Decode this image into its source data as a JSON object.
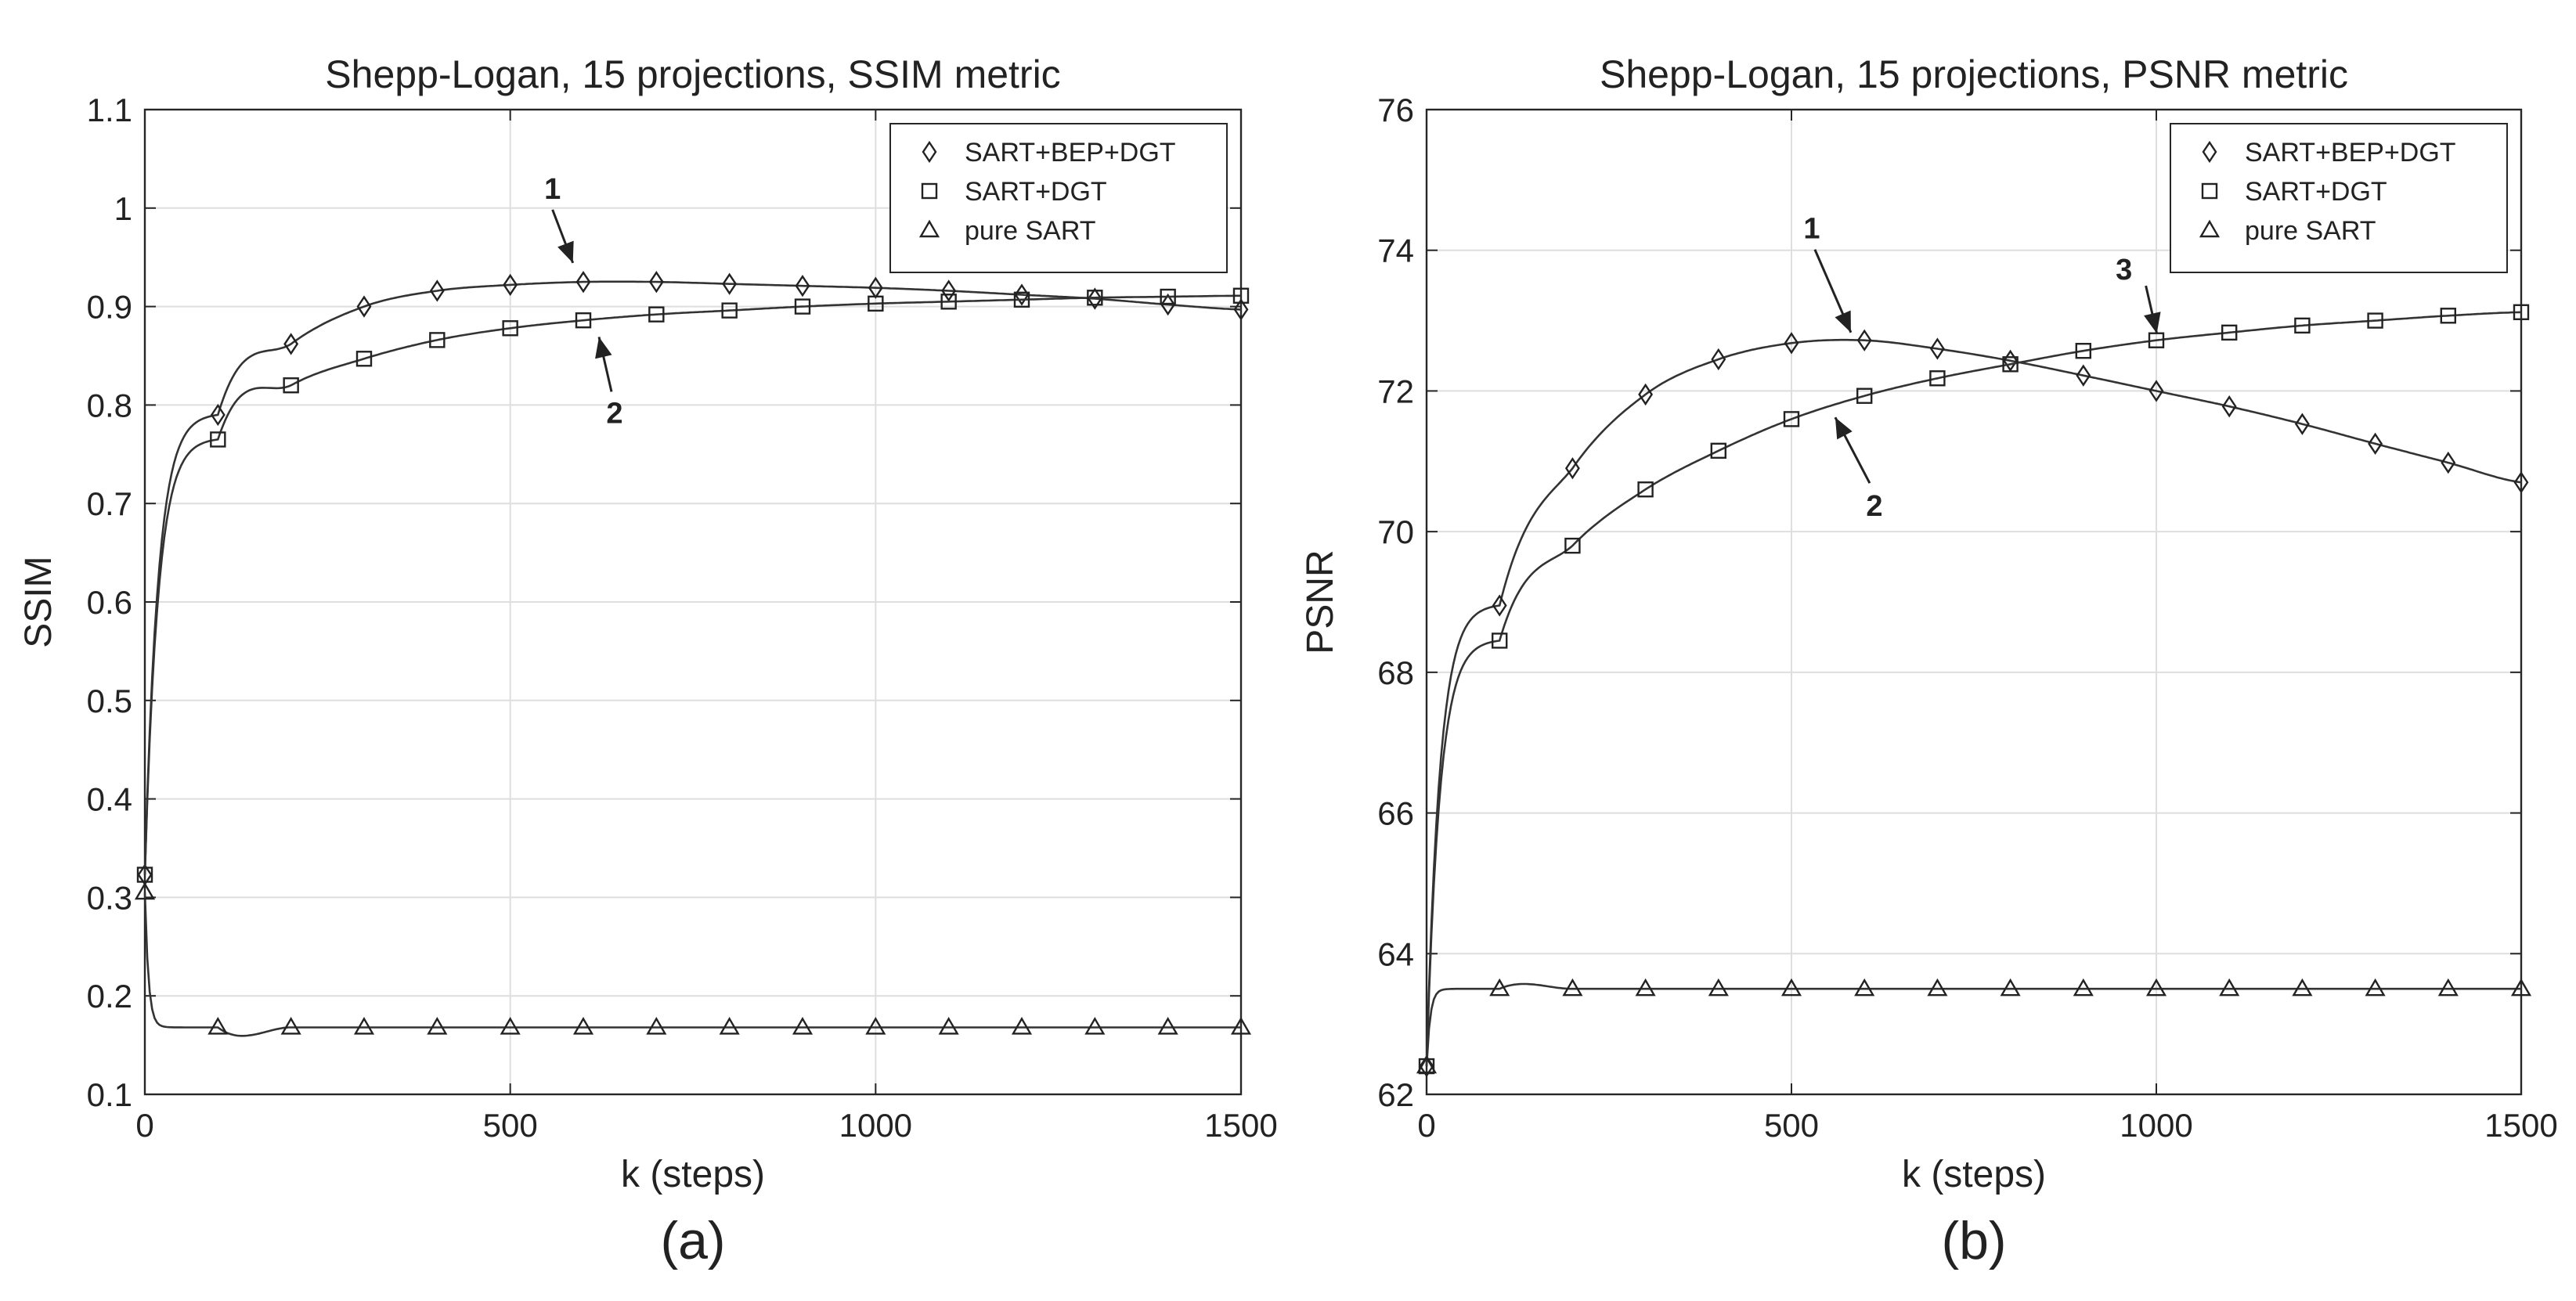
{
  "chart_data": [
    {
      "type": "line",
      "panel_label": "(a)",
      "title": "Shepp-Logan, 15 projections, SSIM metric",
      "xlabel": "k (steps)",
      "ylabel": "SSIM",
      "xlim": [
        0,
        1500
      ],
      "ylim": [
        0.1,
        1.1
      ],
      "xticks": [
        0,
        500,
        1000,
        1500
      ],
      "yticks": [
        0.1,
        0.2,
        0.3,
        0.4,
        0.5,
        0.6,
        0.7,
        0.8,
        0.9,
        1.0,
        1.1
      ],
      "ytick_labels": [
        "0.1",
        "0.2",
        "0.3",
        "0.4",
        "0.5",
        "0.6",
        "0.7",
        "0.8",
        "0.9",
        "1",
        "1.1"
      ],
      "grid": true,
      "legend_position": "top-right",
      "x": [
        0,
        100,
        200,
        300,
        400,
        500,
        600,
        700,
        800,
        900,
        1000,
        1100,
        1200,
        1300,
        1400,
        1500
      ],
      "series": [
        {
          "name": "SART+BEP+DGT",
          "marker": "diamond",
          "values": [
            0.323,
            0.79,
            0.862,
            0.9,
            0.916,
            0.922,
            0.925,
            0.925,
            0.923,
            0.921,
            0.919,
            0.916,
            0.912,
            0.908,
            0.902,
            0.897
          ]
        },
        {
          "name": "SART+DGT",
          "marker": "square",
          "values": [
            0.323,
            0.765,
            0.82,
            0.847,
            0.866,
            0.878,
            0.886,
            0.892,
            0.896,
            0.9,
            0.903,
            0.905,
            0.907,
            0.909,
            0.91,
            0.911
          ]
        },
        {
          "name": "pure SART",
          "marker": "triangle",
          "values": [
            0.305,
            0.168,
            0.168,
            0.168,
            0.168,
            0.168,
            0.168,
            0.168,
            0.168,
            0.168,
            0.168,
            0.168,
            0.168,
            0.168,
            0.168,
            0.168
          ]
        }
      ],
      "annotations": [
        {
          "text": "1",
          "x": 590,
          "y": 0.93
        },
        {
          "text": "2",
          "x": 600,
          "y": 0.885
        }
      ]
    },
    {
      "type": "line",
      "panel_label": "(b)",
      "title": "Shepp-Logan, 15 projections, PSNR metric",
      "xlabel": "k (steps)",
      "ylabel": "PSNR",
      "xlim": [
        0,
        1500
      ],
      "ylim": [
        62,
        76
      ],
      "xticks": [
        0,
        500,
        1000,
        1500
      ],
      "yticks": [
        62,
        64,
        66,
        68,
        70,
        72,
        74,
        76
      ],
      "ytick_labels": [
        "62",
        "64",
        "66",
        "68",
        "70",
        "72",
        "74",
        "76"
      ],
      "grid": true,
      "legend_position": "top-right",
      "x": [
        0,
        100,
        200,
        300,
        400,
        500,
        600,
        700,
        800,
        900,
        1000,
        1100,
        1200,
        1300,
        1400,
        1500
      ],
      "series": [
        {
          "name": "SART+BEP+DGT",
          "marker": "diamond",
          "values": [
            62.4,
            68.95,
            70.9,
            71.95,
            72.45,
            72.68,
            72.72,
            72.6,
            72.43,
            72.22,
            72.0,
            71.78,
            71.53,
            71.25,
            70.98,
            70.7
          ]
        },
        {
          "name": "SART+DGT",
          "marker": "square",
          "values": [
            62.4,
            68.45,
            69.8,
            70.6,
            71.15,
            71.6,
            71.93,
            72.18,
            72.38,
            72.57,
            72.72,
            72.83,
            72.93,
            73.0,
            73.07,
            73.12
          ]
        },
        {
          "name": "pure SART",
          "marker": "triangle",
          "values": [
            62.4,
            63.5,
            63.5,
            63.5,
            63.5,
            63.5,
            63.5,
            63.5,
            63.5,
            63.5,
            63.5,
            63.5,
            63.5,
            63.5,
            63.5,
            63.5
          ]
        }
      ],
      "annotations": [
        {
          "text": "1",
          "x": 560,
          "y": 72.72
        },
        {
          "text": "2",
          "x": 560,
          "y": 71.78
        },
        {
          "text": "3",
          "x": 1020,
          "y": 72.75
        }
      ]
    }
  ]
}
